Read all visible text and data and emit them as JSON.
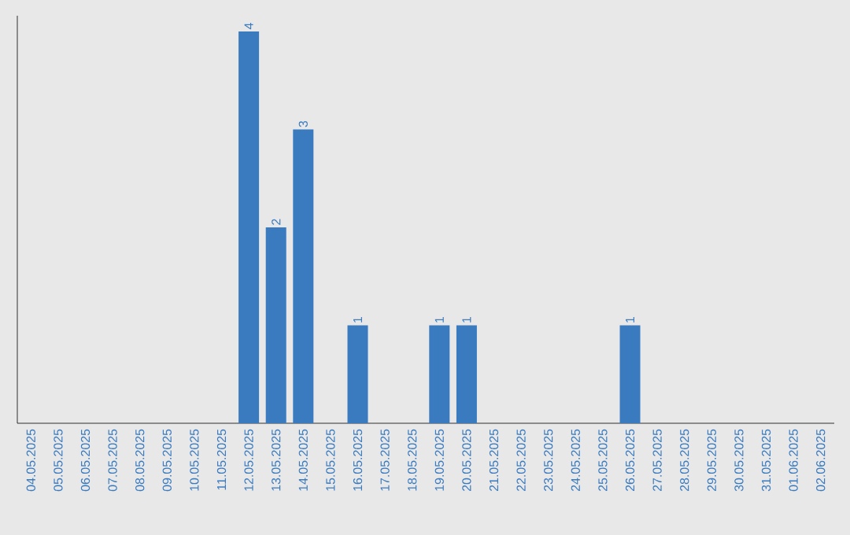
{
  "chart_data": {
    "type": "bar",
    "categories": [
      "04.05.2025",
      "05.05.2025",
      "06.05.2025",
      "07.05.2025",
      "08.05.2025",
      "09.05.2025",
      "10.05.2025",
      "11.05.2025",
      "12.05.2025",
      "13.05.2025",
      "14.05.2025",
      "15.05.2025",
      "16.05.2025",
      "17.05.2025",
      "18.05.2025",
      "19.05.2025",
      "20.05.2025",
      "21.05.2025",
      "22.05.2025",
      "23.05.2025",
      "24.05.2025",
      "25.05.2025",
      "26.05.2025",
      "27.05.2025",
      "28.05.2025",
      "29.05.2025",
      "30.05.2025",
      "31.05.2025",
      "01.06.2025",
      "02.06.2025"
    ],
    "values": [
      0,
      0,
      0,
      0,
      0,
      0,
      0,
      0,
      4,
      2,
      3,
      0,
      1,
      0,
      0,
      1,
      1,
      0,
      0,
      0,
      0,
      0,
      1,
      0,
      0,
      0,
      0,
      0,
      0,
      0
    ],
    "value_labels": [
      null,
      null,
      null,
      null,
      null,
      null,
      null,
      null,
      "4",
      "2",
      "3",
      null,
      "1",
      null,
      null,
      "1",
      "1",
      null,
      null,
      null,
      null,
      null,
      "1",
      null,
      null,
      null,
      null,
      null,
      null,
      null
    ],
    "color": "#3a7bc0",
    "tick_labels": "x"
  }
}
